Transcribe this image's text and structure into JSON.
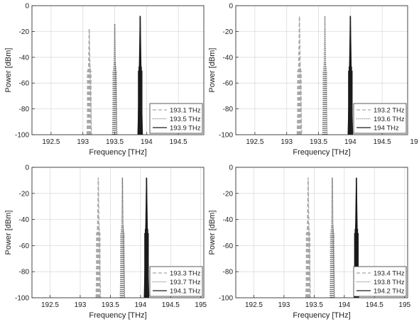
{
  "chart_data": [
    {
      "type": "line",
      "xlabel": "Frequency [THz]",
      "ylabel": "Power [dBm]",
      "xlim": [
        192.2,
        194.9
      ],
      "ylim": [
        -100,
        0
      ],
      "xticks": [
        "192.5",
        "193",
        "193.5",
        "194",
        "194.5"
      ],
      "yticks": [
        "0",
        "-20",
        "-40",
        "-60",
        "-80",
        "-100"
      ],
      "grid": true,
      "legend_position": "bottom-right",
      "series": [
        {
          "name": "193.1 THz",
          "center": 193.1,
          "peak": -18,
          "style": "dashed",
          "color": "#a8a8a8"
        },
        {
          "name": "193.5 THz",
          "center": 193.5,
          "peak": -14,
          "style": "dotted",
          "color": "#6e6e6e"
        },
        {
          "name": "193.9 THz",
          "center": 193.9,
          "peak": -8,
          "style": "solid",
          "color": "#1a1a1a"
        }
      ]
    },
    {
      "type": "line",
      "xlabel": "Frequency [THz]",
      "ylabel": "Power [dBm]",
      "xlim": [
        192.2,
        194.9
      ],
      "ylim": [
        -100,
        0
      ],
      "xticks": [
        "192.5",
        "193",
        "193.5",
        "194",
        "194.5",
        "19"
      ],
      "yticks": [
        "0",
        "-20",
        "-40",
        "-60",
        "-80",
        "-100"
      ],
      "grid": true,
      "legend_position": "bottom-right",
      "series": [
        {
          "name": "193.2 THz",
          "center": 193.2,
          "peak": -8,
          "style": "dashed",
          "color": "#a8a8a8"
        },
        {
          "name": "193.6 THz",
          "center": 193.6,
          "peak": -8,
          "style": "dotted",
          "color": "#6e6e6e"
        },
        {
          "name": "194 THz",
          "center": 194.0,
          "peak": -8,
          "style": "solid",
          "color": "#1a1a1a"
        }
      ]
    },
    {
      "type": "line",
      "xlabel": "Frequency [THz]",
      "ylabel": "Power [dBm]",
      "xlim": [
        192.2,
        195.05
      ],
      "ylim": [
        -100,
        0
      ],
      "xticks": [
        "192.5",
        "193",
        "193.5",
        "194",
        "194.5",
        "195"
      ],
      "yticks": [
        "0",
        "-20",
        "-40",
        "-60",
        "-80",
        "-100"
      ],
      "grid": true,
      "legend_position": "bottom-right",
      "series": [
        {
          "name": "193.3 THz",
          "center": 193.3,
          "peak": -8,
          "style": "dashed",
          "color": "#a8a8a8"
        },
        {
          "name": "193.7 THz",
          "center": 193.7,
          "peak": -8,
          "style": "dotted",
          "color": "#6e6e6e"
        },
        {
          "name": "194.1 THz",
          "center": 194.1,
          "peak": -8,
          "style": "solid",
          "color": "#1a1a1a"
        }
      ]
    },
    {
      "type": "line",
      "xlabel": "Frequency [THz]",
      "ylabel": "Power [dBm]",
      "xlim": [
        192.2,
        195.05
      ],
      "ylim": [
        -100,
        0
      ],
      "xticks": [
        "192.5",
        "193",
        "193.5",
        "194",
        "194.5",
        "195"
      ],
      "yticks": [
        "0",
        "-20",
        "-40",
        "-60",
        "-80",
        "-100"
      ],
      "grid": true,
      "legend_position": "bottom-right",
      "series": [
        {
          "name": "193.4 THz",
          "center": 193.4,
          "peak": -8,
          "style": "dashed",
          "color": "#a8a8a8"
        },
        {
          "name": "193.8 THz",
          "center": 193.8,
          "peak": -8,
          "style": "dotted",
          "color": "#6e6e6e"
        },
        {
          "name": "194.2 THz",
          "center": 194.2,
          "peak": -8,
          "style": "solid",
          "color": "#1a1a1a"
        }
      ]
    }
  ]
}
